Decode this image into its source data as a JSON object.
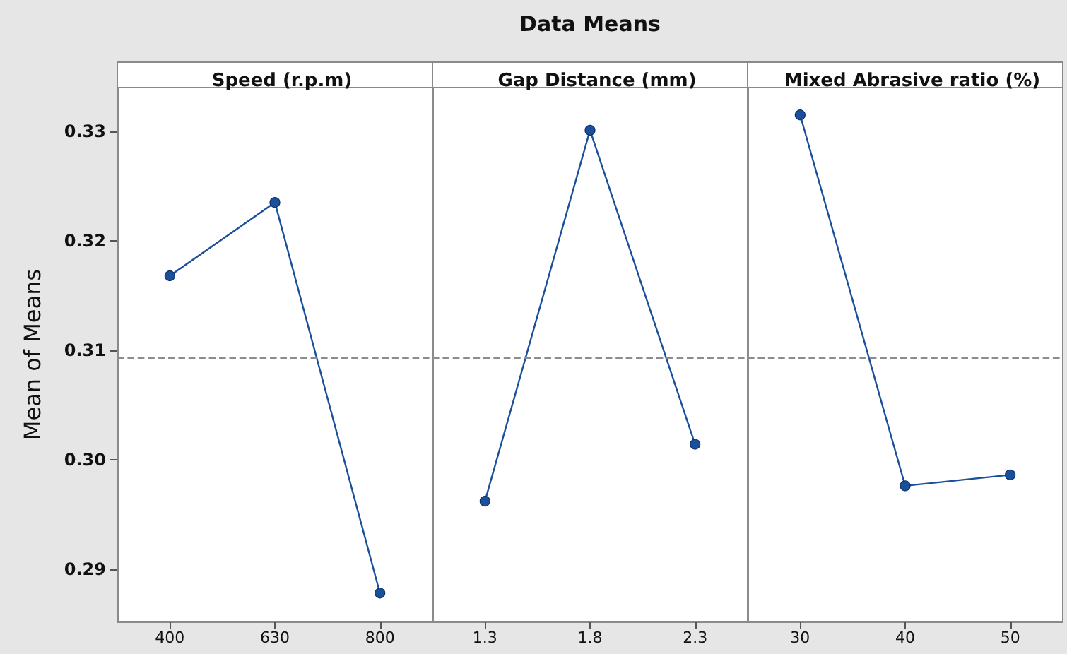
{
  "chart_data": [
    {
      "type": "line",
      "xlabel": "Speed (r.p.m)",
      "ylabel": "Mean of Means",
      "categories": [
        "400",
        "630",
        "800"
      ],
      "values": [
        0.3168,
        0.3235,
        0.2878
      ],
      "color": "#1a4f9a",
      "marker": "circle",
      "line_style": "solid",
      "ylim": [
        0.2852,
        0.334
      ],
      "yticks": [
        0.29,
        {
          "value": 0.3,
          "label": "0.30"
        },
        0.31,
        0.32,
        0.33
      ],
      "ref_lines": [
        {
          "axis": "y",
          "value": 0.3093,
          "label": null,
          "color": "#8c8c8c",
          "line_style": "dashed"
        }
      ]
    },
    {
      "type": "line",
      "title": "Data Means",
      "xlabel": "Gap Distance (mm)",
      "categories": [
        "1.3",
        "1.8",
        "2.3"
      ],
      "values": [
        0.2962,
        0.3301,
        0.3014
      ],
      "color": "#1a4f9a",
      "marker": "circle",
      "line_style": "solid",
      "ylim": [
        0.2852,
        0.334
      ],
      "tick_labels": "x",
      "ref_lines": [
        {
          "axis": "y",
          "value": 0.3093,
          "label": null,
          "color": "#8c8c8c",
          "line_style": "dashed"
        }
      ]
    },
    {
      "type": "line",
      "xlabel": "Mixed Abrasive ratio (%)",
      "categories": [
        "30",
        "40",
        "50"
      ],
      "values": [
        0.3315,
        0.2976,
        0.2986
      ],
      "color": "#1a4f9a",
      "marker": "circle",
      "line_style": "solid",
      "ylim": [
        0.2852,
        0.334
      ],
      "tick_labels": "x",
      "ref_lines": [
        {
          "axis": "y",
          "value": 0.3093,
          "label": null,
          "color": "#8c8c8c",
          "line_style": "dashed"
        }
      ]
    }
  ]
}
